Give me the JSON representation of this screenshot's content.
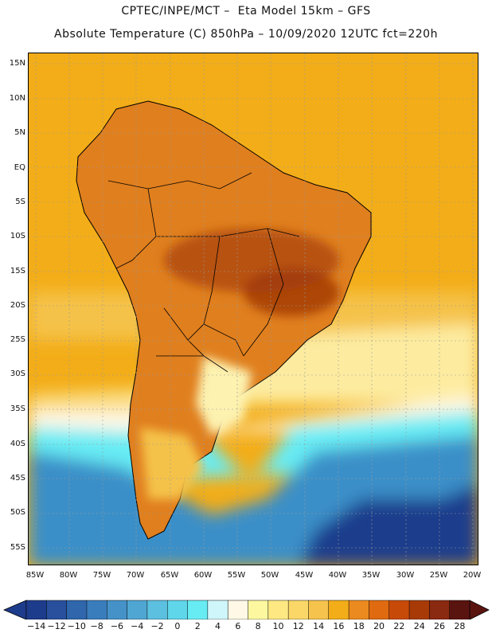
{
  "header": {
    "line1": "CPTEC/INPE/MCT –  Eta Model 15km – GFS",
    "line2": "Absolute Temperature (C) 850hPa – 10/09/2020 12UTC fct=220h"
  },
  "axes": {
    "lat_labels": [
      "15N",
      "10N",
      "5N",
      "EQ",
      "5S",
      "10S",
      "15S",
      "20S",
      "25S",
      "30S",
      "35S",
      "40S",
      "45S",
      "50S",
      "55S"
    ],
    "lon_labels": [
      "85W",
      "80W",
      "75W",
      "70W",
      "65W",
      "60W",
      "55W",
      "50W",
      "45W",
      "40W",
      "35W",
      "30W",
      "25W",
      "20W"
    ]
  },
  "colorbar": {
    "labels": [
      "-14",
      "-12",
      "-10",
      "-8",
      "-6",
      "-4",
      "-2",
      "0",
      "2",
      "4",
      "6",
      "8",
      "10",
      "12",
      "14",
      "16",
      "18",
      "20",
      "22",
      "24",
      "26",
      "28"
    ],
    "colors": [
      "#1e3c8c",
      "#28509c",
      "#2f66ac",
      "#3a7dbd",
      "#4592c8",
      "#4fa6d2",
      "#5cc0e0",
      "#5fd6ea",
      "#68ecf4",
      "#cef6fb",
      "#fff8e6",
      "#fdf8a0",
      "#fde882",
      "#fbd768",
      "#f6c34c",
      "#f3ad18",
      "#eb8a1e",
      "#e06a10",
      "#c84a08",
      "#a83a08",
      "#8a2a10",
      "#5a1410"
    ]
  },
  "map": {
    "ocean_color": "#f3ad18",
    "land_color": "#e07f1e",
    "hot_color": "#b04a10",
    "warm_color": "#eb981e",
    "cool_color": "#fdeca0",
    "cold_color": "#5fd6ea",
    "colder_color": "#3a8fc8",
    "coldest_color": "#1e3c8c"
  }
}
